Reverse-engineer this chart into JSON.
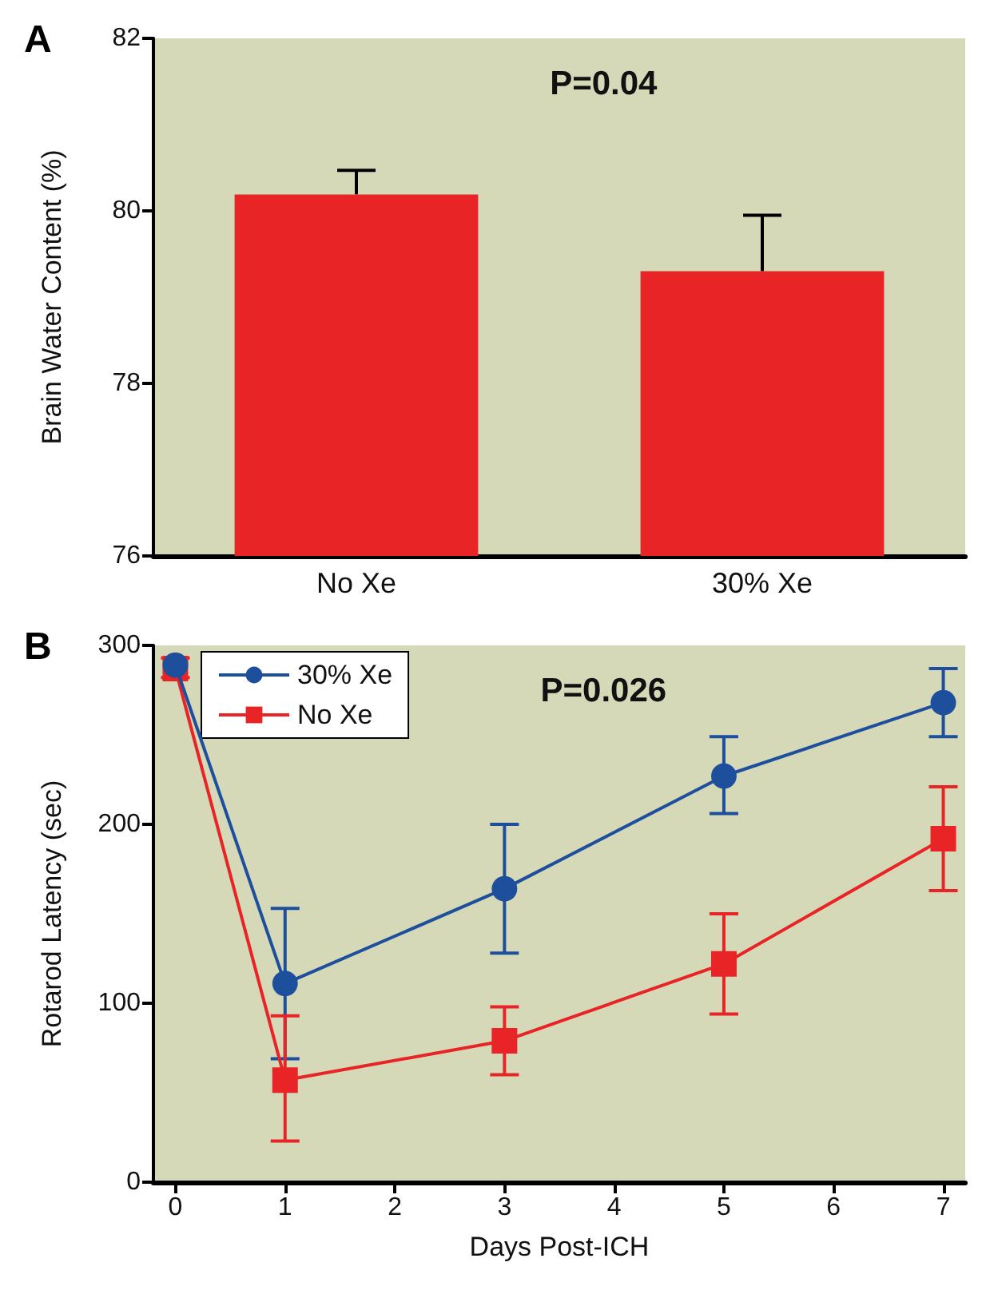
{
  "chart_data": [
    {
      "type": "bar",
      "title": "A",
      "ylabel": "Brain Water Content (%)",
      "categories": [
        "No Xe",
        "30% Xe"
      ],
      "series": [
        {
          "color": "#e82427",
          "values": [
            80.19,
            79.3
          ],
          "errors": [
            [
              80.19,
              80.47
            ],
            [
              79.3,
              79.95
            ]
          ]
        }
      ],
      "ylim": [
        76,
        82
      ],
      "yticks": [
        76,
        78,
        80,
        82
      ],
      "annotations": [
        "P=0.04"
      ]
    },
    {
      "type": "line",
      "title": "B",
      "xlabel": "Days Post-ICH",
      "ylabel": "Rotarod Latency (sec)",
      "legend": "top left",
      "series": [
        {
          "name": "30% Xe",
          "color": "#1e4f9c",
          "marker": "circle",
          "x": [
            0,
            1,
            3,
            5,
            7
          ],
          "values": [
            289,
            111,
            164,
            227,
            268
          ],
          "errors": [
            null,
            [
              69,
              153
            ],
            [
              128,
              200
            ],
            [
              206,
              249
            ],
            [
              249,
              287
            ]
          ]
        },
        {
          "name": "No Xe",
          "color": "#e82427",
          "marker": "square",
          "x": [
            0,
            1,
            3,
            5,
            7
          ],
          "values": [
            287,
            57,
            79,
            122,
            192
          ],
          "errors": [
            [
              282,
              293
            ],
            [
              23,
              93
            ],
            [
              60,
              98
            ],
            [
              94,
              150
            ],
            [
              163,
              221
            ]
          ]
        }
      ],
      "xlim": [
        -0.2,
        7.2
      ],
      "xticks": [
        0,
        1,
        2,
        3,
        4,
        5,
        6,
        7
      ],
      "ylim": [
        0,
        300
      ],
      "yticks": [
        0,
        100,
        200,
        300
      ],
      "annotations": [
        "P=0.026"
      ]
    }
  ]
}
